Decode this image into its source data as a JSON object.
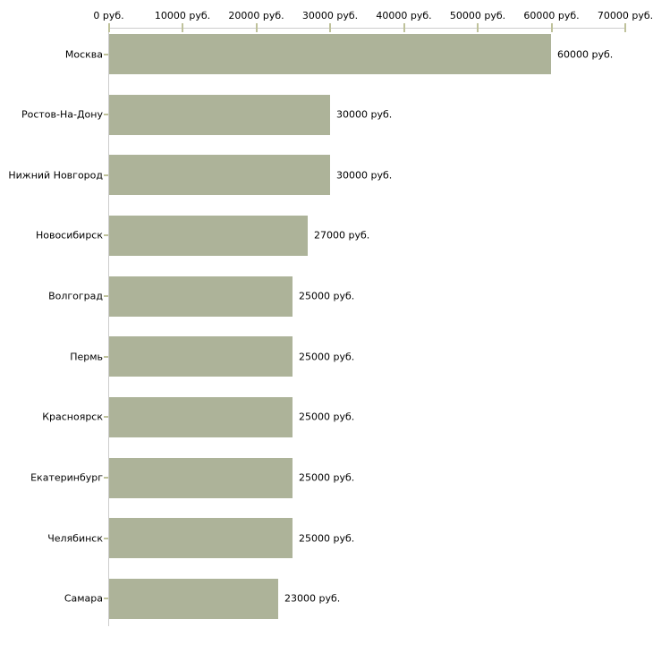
{
  "chart_data": {
    "type": "bar",
    "orientation": "horizontal",
    "title": "",
    "xlabel": "",
    "ylabel": "",
    "unit": "руб.",
    "grid": false,
    "legend": false,
    "categories": [
      "Москва",
      "Ростов-На-Дону",
      "Нижний Новгород",
      "Новосибирск",
      "Волгоград",
      "Пермь",
      "Красноярск",
      "Екатеринбург",
      "Челябинск",
      "Самара"
    ],
    "values": [
      60000,
      30000,
      30000,
      27000,
      25000,
      25000,
      25000,
      25000,
      25000,
      23000
    ],
    "value_labels": [
      "60000 руб.",
      "30000 руб.",
      "30000 руб.",
      "27000 руб.",
      "25000 руб.",
      "25000 руб.",
      "25000 руб.",
      "25000 руб.",
      "25000 руб.",
      "23000 руб."
    ],
    "x_axis": {
      "position": "top",
      "min": 0,
      "max": 70000,
      "tick_values": [
        0,
        10000,
        20000,
        30000,
        40000,
        50000,
        60000,
        70000
      ],
      "tick_labels": [
        "0 руб.",
        "10000 руб.",
        "20000 руб.",
        "30000 руб.",
        "40000 руб.",
        "50000 руб.",
        "60000 руб.",
        "70000 руб."
      ]
    },
    "colors": {
      "bar": "#adb399",
      "axis_line": "#cccccc",
      "tick": "#bfc29b",
      "text": "#000000",
      "background": "#ffffff"
    }
  }
}
